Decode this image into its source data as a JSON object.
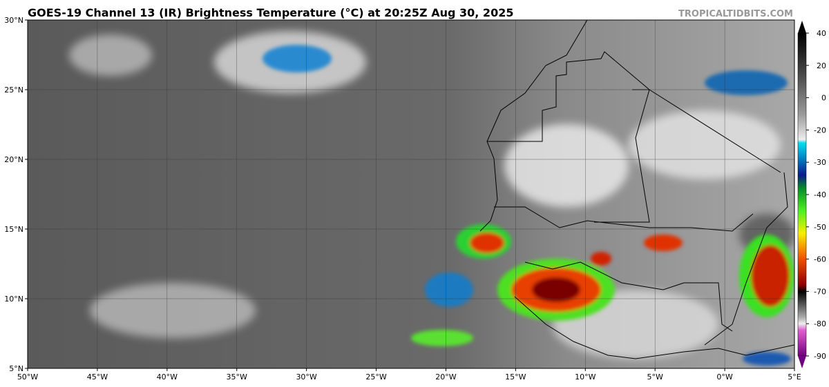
{
  "header": {
    "title": "GOES-19 Channel 13 (IR) Brightness Temperature (°C) at 20:25Z Aug 30, 2025",
    "site": "TROPICALTIDBITS.COM"
  },
  "map": {
    "lat_labels": [
      "30°N",
      "25°N",
      "20°N",
      "15°N",
      "10°N",
      "5°N"
    ],
    "lon_labels": [
      "50°W",
      "45°W",
      "40°W",
      "35°W",
      "30°W",
      "25°W",
      "20°W",
      "15°W",
      "10°W",
      "5°W",
      "0°W",
      "5°E"
    ]
  },
  "colorbar": {
    "ticks": [
      40,
      20,
      0,
      -20,
      -30,
      -40,
      -50,
      -60,
      -70,
      -80,
      -90
    ]
  }
}
